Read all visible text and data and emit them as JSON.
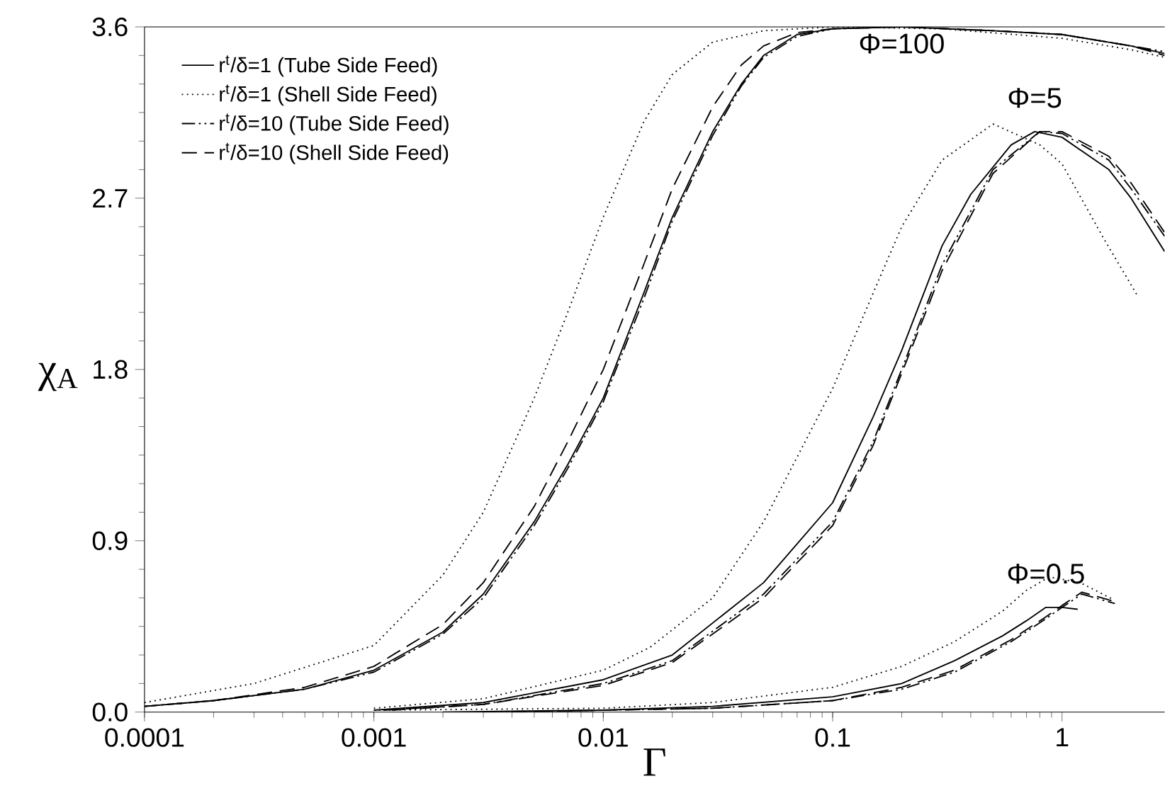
{
  "chart_data": {
    "type": "line",
    "xlabel": "Γ",
    "ylabel": "χ$_{A}$",
    "log": "x",
    "legend": "top left",
    "xlim": [
      0.0001,
      2.8
    ],
    "ylim": [
      0,
      3.6
    ],
    "xticks": [
      0.0001,
      0.001,
      0.01,
      0.1,
      1
    ],
    "yticks": [
      {
        "value": 0,
        "label": "0.0"
      },
      {
        "value": 0.9,
        "label": "0.9"
      },
      {
        "value": 1.8,
        "label": "1.8"
      },
      {
        "value": 2.7,
        "label": "2.7"
      },
      {
        "value": 3.6,
        "label": "3.6"
      }
    ],
    "annotations": [
      "Φ=100",
      "Φ=5",
      "Φ=0.5"
    ],
    "series": [
      {
        "name": "r$^{t}$/δ=1 (Tube Side Feed)",
        "color": "#000000",
        "line_style": "solid",
        "x": [
          0.0001,
          0.0002,
          0.0005,
          0.001,
          0.002,
          0.003,
          0.005,
          0.007,
          0.01,
          0.015,
          0.02,
          0.03,
          0.04,
          0.05,
          0.07,
          0.1,
          0.2,
          0.5,
          1,
          2,
          2.8
        ],
        "values": [
          0.03,
          0.06,
          0.12,
          0.22,
          0.42,
          0.62,
          1.0,
          1.3,
          1.65,
          2.2,
          2.6,
          3.05,
          3.3,
          3.45,
          3.56,
          3.59,
          3.6,
          3.58,
          3.56,
          3.5,
          3.46
        ]
      },
      {
        "name": "r$^{t}$/δ=1 (Shell Side Feed)",
        "color": "#000000",
        "line_style": "dotted",
        "x": [
          0.0001,
          0.0003,
          0.001,
          0.002,
          0.003,
          0.005,
          0.007,
          0.01,
          0.015,
          0.02,
          0.03,
          0.05,
          0.1,
          0.3,
          1,
          2,
          2.8
        ],
        "values": [
          0.05,
          0.15,
          0.35,
          0.72,
          1.05,
          1.65,
          2.1,
          2.6,
          3.1,
          3.35,
          3.52,
          3.58,
          3.6,
          3.59,
          3.54,
          3.48,
          3.44
        ]
      },
      {
        "name": "r$^{t}$/δ=10 (Tube Side Feed)",
        "color": "#000000",
        "line_style": "dashdot",
        "x": [
          0.0001,
          0.0002,
          0.0005,
          0.001,
          0.002,
          0.003,
          0.005,
          0.007,
          0.01,
          0.015,
          0.02,
          0.03,
          0.04,
          0.05,
          0.07,
          0.1,
          0.2,
          0.5,
          1,
          2,
          2.8
        ],
        "values": [
          0.03,
          0.06,
          0.12,
          0.21,
          0.41,
          0.6,
          0.98,
          1.28,
          1.63,
          2.17,
          2.58,
          3.03,
          3.29,
          3.44,
          3.55,
          3.59,
          3.6,
          3.58,
          3.56,
          3.5,
          3.47
        ]
      },
      {
        "name": "r$^{t}$/δ=10 (Shell Side Feed)",
        "color": "#000000",
        "line_style": "dashed",
        "x": [
          0.0001,
          0.0002,
          0.0005,
          0.001,
          0.002,
          0.003,
          0.005,
          0.007,
          0.01,
          0.015,
          0.02,
          0.03,
          0.04,
          0.05,
          0.07,
          0.1,
          0.2,
          0.5,
          1,
          2,
          2.8
        ],
        "values": [
          0.03,
          0.06,
          0.13,
          0.24,
          0.46,
          0.68,
          1.08,
          1.42,
          1.8,
          2.35,
          2.75,
          3.18,
          3.4,
          3.5,
          3.57,
          3.59,
          3.6,
          3.58,
          3.56,
          3.5,
          3.45
        ]
      },
      {
        "color": "#000000",
        "line_style": "solid",
        "x": [
          0.001,
          0.003,
          0.01,
          0.02,
          0.05,
          0.1,
          0.15,
          0.2,
          0.3,
          0.4,
          0.6,
          0.76,
          1,
          1.6,
          2,
          2.8
        ],
        "values": [
          0.01,
          0.05,
          0.17,
          0.3,
          0.68,
          1.1,
          1.55,
          1.9,
          2.45,
          2.72,
          2.98,
          3.05,
          3.02,
          2.85,
          2.7,
          2.42
        ]
      },
      {
        "color": "#000000",
        "line_style": "dotted",
        "x": [
          0.001,
          0.003,
          0.01,
          0.016,
          0.03,
          0.05,
          0.1,
          0.15,
          0.2,
          0.3,
          0.5,
          0.8,
          1,
          1.5,
          2.15
        ],
        "values": [
          0.02,
          0.07,
          0.22,
          0.34,
          0.6,
          1.0,
          1.7,
          2.2,
          2.55,
          2.9,
          3.09,
          2.98,
          2.88,
          2.5,
          2.18
        ]
      },
      {
        "color": "#000000",
        "line_style": "dashdot",
        "x": [
          0.0012,
          0.003,
          0.01,
          0.02,
          0.05,
          0.1,
          0.15,
          0.2,
          0.3,
          0.5,
          0.8,
          1,
          1.6,
          2,
          2.8
        ],
        "values": [
          0.01,
          0.04,
          0.15,
          0.27,
          0.62,
          1.0,
          1.42,
          1.8,
          2.35,
          2.85,
          3.05,
          3.04,
          2.9,
          2.75,
          2.5
        ]
      },
      {
        "color": "#000000",
        "line_style": "dashed",
        "x": [
          0.0011,
          0.003,
          0.01,
          0.02,
          0.05,
          0.1,
          0.15,
          0.2,
          0.3,
          0.5,
          0.8,
          1,
          1.6,
          2,
          2.8
        ],
        "values": [
          0.01,
          0.04,
          0.14,
          0.26,
          0.6,
          0.98,
          1.4,
          1.78,
          2.32,
          2.83,
          3.05,
          3.05,
          2.92,
          2.78,
          2.52
        ]
      },
      {
        "color": "#000000",
        "line_style": "solid",
        "x": [
          0.002,
          0.01,
          0.03,
          0.1,
          0.2,
          0.34,
          0.55,
          0.7,
          0.85,
          1,
          1.17
        ],
        "values": [
          0.0,
          0.01,
          0.03,
          0.08,
          0.15,
          0.27,
          0.4,
          0.48,
          0.55,
          0.55,
          0.54
        ]
      },
      {
        "color": "#000000",
        "line_style": "dotted",
        "x": [
          0.001,
          0.01,
          0.03,
          0.1,
          0.2,
          0.34,
          0.55,
          0.7,
          0.88,
          1.2,
          1.68
        ],
        "values": [
          0.01,
          0.02,
          0.05,
          0.13,
          0.24,
          0.37,
          0.53,
          0.64,
          0.71,
          0.68,
          0.59
        ]
      },
      {
        "color": "#000000",
        "line_style": "dashdot",
        "x": [
          0.003,
          0.01,
          0.03,
          0.1,
          0.2,
          0.34,
          0.6,
          0.85,
          1,
          1.22,
          1.7
        ],
        "values": [
          0.0,
          0.01,
          0.02,
          0.06,
          0.12,
          0.21,
          0.37,
          0.49,
          0.55,
          0.62,
          0.57
        ]
      },
      {
        "color": "#000000",
        "line_style": "dashed",
        "x": [
          0.004,
          0.01,
          0.03,
          0.1,
          0.2,
          0.34,
          0.6,
          0.85,
          1,
          1.22,
          1.7
        ],
        "values": [
          0.0,
          0.01,
          0.02,
          0.06,
          0.13,
          0.22,
          0.38,
          0.5,
          0.56,
          0.63,
          0.58
        ]
      }
    ]
  }
}
